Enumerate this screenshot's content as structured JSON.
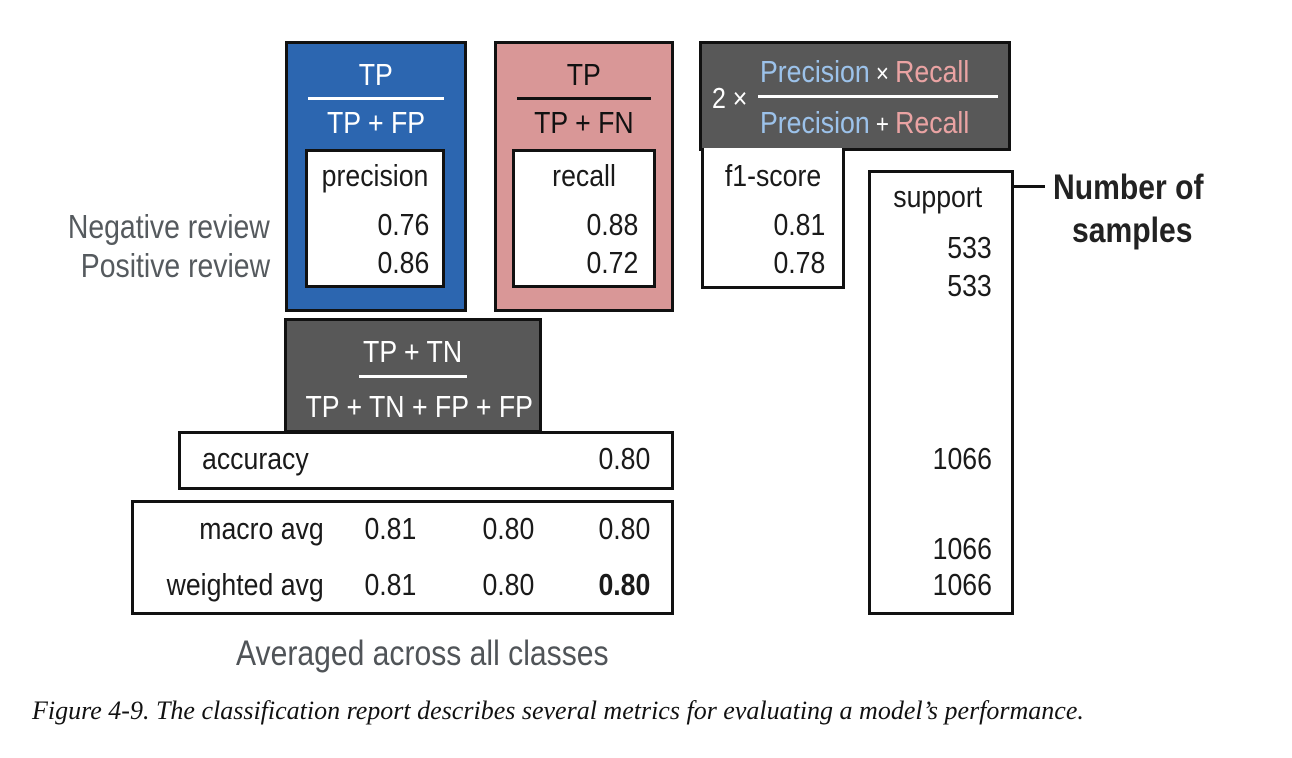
{
  "colors": {
    "precision_panel": "#2c66b0",
    "recall_panel": "#d99797",
    "dark_panel": "#585858",
    "precision_term": "#9cc2ea",
    "recall_term": "#eaa3a3",
    "label_gray": "#555a5e"
  },
  "formulas": {
    "precision": {
      "numerator": "TP",
      "denominator": "TP + FP"
    },
    "recall": {
      "numerator": "TP",
      "denominator": "TP + FN"
    },
    "f1": {
      "factor": "2 ×",
      "num_left": "Precision",
      "num_op": "×",
      "num_right": "Recall",
      "den_left": "Precision",
      "den_op": "+",
      "den_right": "Recall"
    },
    "accuracy": {
      "numerator": "TP + TN",
      "denominator": "TP + TN + FP + FP"
    }
  },
  "row_labels": {
    "negative": "Negative review",
    "positive": "Positive review"
  },
  "columns": {
    "precision": {
      "header": "precision",
      "values": [
        "0.76",
        "0.86"
      ]
    },
    "recall": {
      "header": "recall",
      "values": [
        "0.88",
        "0.72"
      ]
    },
    "f1": {
      "header": "f1-score",
      "values": [
        "0.81",
        "0.78"
      ]
    },
    "support": {
      "header": "support",
      "values": [
        "533",
        "533"
      ],
      "accuracy": "1066",
      "macro": "1066",
      "weighted": "1066"
    }
  },
  "support_note": {
    "line1": "Number of",
    "line2": "samples"
  },
  "accuracy_row": {
    "label": "accuracy",
    "value": "0.80"
  },
  "averages": {
    "macro": {
      "label": "macro avg",
      "precision": "0.81",
      "recall": "0.80",
      "f1": "0.80"
    },
    "weighted": {
      "label": "weighted avg",
      "precision": "0.81",
      "recall": "0.80",
      "f1": "0.80"
    }
  },
  "averages_note": "Averaged across all classes",
  "caption": "Figure 4-9. The classification report describes several metrics for evaluating a model’s performance."
}
